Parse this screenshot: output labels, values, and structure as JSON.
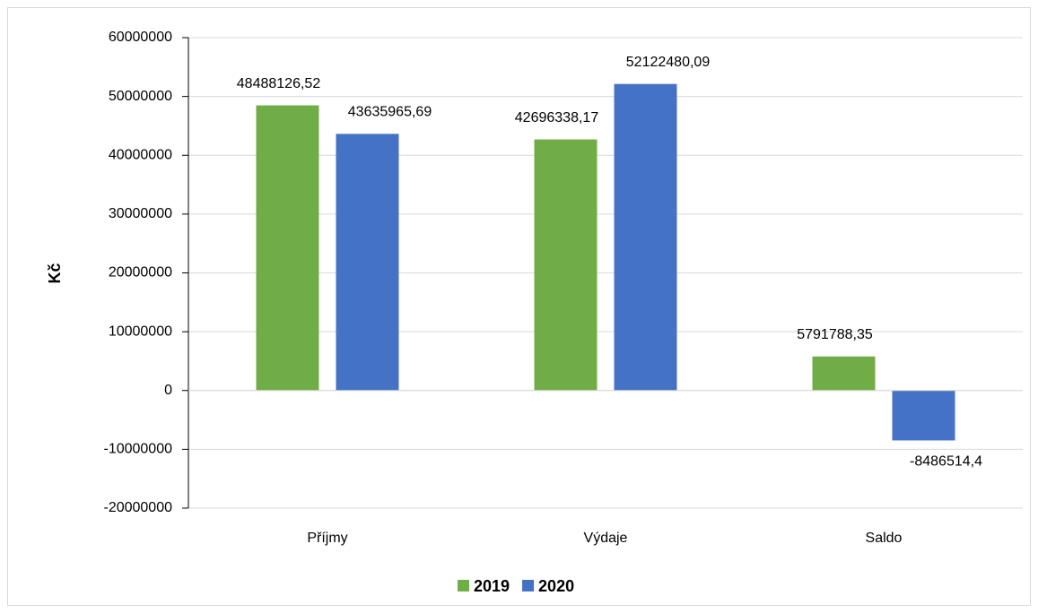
{
  "chart_data": {
    "type": "bar",
    "categories": [
      "Příjmy",
      "Výdaje",
      "Saldo"
    ],
    "series": [
      {
        "name": "2019",
        "color": "#70ad47",
        "values": [
          48488126.52,
          42696338.17,
          5791788.35
        ],
        "value_labels": [
          "48488126,52",
          "42696338,17",
          "5791788,35"
        ]
      },
      {
        "name": "2020",
        "color": "#4472c4",
        "values": [
          43635965.69,
          52122480.09,
          -8486514.4
        ],
        "value_labels": [
          "43635965,69",
          "52122480,09",
          "-8486514,4"
        ]
      }
    ],
    "y_label": "Kč",
    "ylim": [
      -20000000,
      60000000
    ],
    "yticks": [
      -20000000,
      -10000000,
      0,
      10000000,
      20000000,
      30000000,
      40000000,
      50000000,
      60000000
    ],
    "grid": true,
    "legend": "bottom"
  }
}
